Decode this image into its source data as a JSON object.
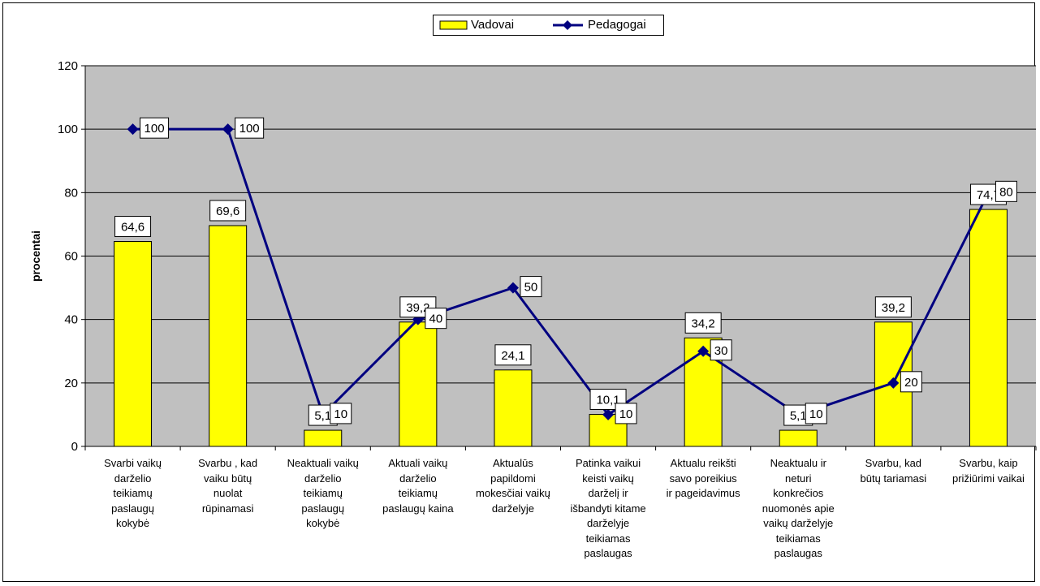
{
  "chart_data": {
    "type": "bar",
    "ylabel": "procentai",
    "ylim": [
      0,
      120
    ],
    "yticks": [
      0,
      20,
      40,
      60,
      80,
      100,
      120
    ],
    "legend_position": "top-center",
    "plot_background": "#c0c0c0",
    "categories": [
      [
        "Svarbi vaikų",
        "darželio",
        "teikiamų",
        "paslaugų",
        "kokybė"
      ],
      [
        "Svarbu , kad",
        "vaiku būtų",
        "nuolat",
        "rūpinamasi"
      ],
      [
        "Neaktuali vaikų",
        "darželio",
        "teikiamų",
        "paslaugų",
        "kokybė"
      ],
      [
        "Aktuali vaikų",
        "darželio",
        "teikiamų",
        "paslaugų kaina"
      ],
      [
        "Aktualūs",
        "papildomi",
        "mokesčiai vaikų",
        "darželyje"
      ],
      [
        "Patinka vaikui",
        "keisti vaikų",
        "darželį ir",
        "išbandyti kitame",
        "darželyje",
        "teikiamas",
        "paslaugas"
      ],
      [
        "Aktualu reikšti",
        "savo poreikius",
        "ir pageidavimus"
      ],
      [
        "Neaktualu ir",
        "neturi",
        "konkrečios",
        "nuomonės apie",
        "vaikų darželyje",
        "teikiamas",
        "paslaugas"
      ],
      [
        "Svarbu, kad",
        "būtų tariamasi"
      ],
      [
        "Svarbu, kaip",
        "prižiūrimi vaikai"
      ]
    ],
    "series": [
      {
        "name": "Vadovai",
        "kind": "bar",
        "color": "#ffff00",
        "values": [
          64.6,
          69.6,
          5.1,
          39.2,
          24.1,
          10.1,
          34.2,
          5.1,
          39.2,
          74.7
        ],
        "labels": [
          "64,6",
          "69,6",
          "5,1",
          "39,2",
          "24,1",
          "10,1",
          "34,2",
          "5,1",
          "39,2",
          "74,7"
        ]
      },
      {
        "name": "Pedagogai",
        "kind": "line",
        "color": "#000080",
        "values": [
          100,
          100,
          10,
          40,
          50,
          10,
          30,
          10,
          20,
          80
        ],
        "labels": [
          "100",
          "100",
          "10",
          "40",
          "50",
          "10",
          "30",
          "10",
          "20",
          "80"
        ]
      }
    ]
  }
}
